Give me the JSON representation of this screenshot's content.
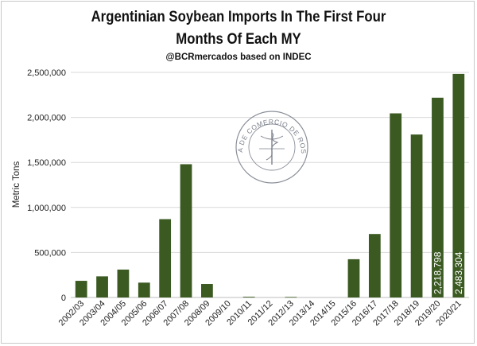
{
  "chart_data": {
    "type": "bar",
    "title": "Argentinian Soybean Imports In The First Four",
    "title_line2": "Months Of Each MY",
    "subtitle": "@BCRmercados based on INDEC",
    "xlabel": "",
    "ylabel": "Metric Tons",
    "ylim": [
      0,
      2500000
    ],
    "yticks": [
      0,
      500000,
      1000000,
      1500000,
      2000000,
      2500000
    ],
    "ytick_labels": [
      "0",
      "500,000",
      "1,000,000",
      "1,500,000",
      "2,000,000",
      "2,500,000"
    ],
    "grid": true,
    "legend": "none",
    "categories": [
      "2002/03",
      "2003/04",
      "2004/05",
      "2005/06",
      "2006/07",
      "2007/08",
      "2008/09",
      "2009/10",
      "2010/11",
      "2011/12",
      "2012/13",
      "2013/14",
      "2014/15",
      "2015/16",
      "2016/17",
      "2017/18",
      "2018/19",
      "2019/20",
      "2020/21"
    ],
    "values": [
      185000,
      235000,
      310000,
      165000,
      870000,
      1480000,
      150000,
      0,
      8000,
      0,
      6000,
      0,
      0,
      425000,
      705000,
      2045000,
      1810000,
      2218798,
      2483304
    ],
    "data_labels": [
      {
        "index": 17,
        "text": "2,218,798"
      },
      {
        "index": 18,
        "text": "2,483,304"
      }
    ],
    "bar_color": "#3b5a22",
    "watermark": {
      "text": "BOLSA DE COMERCIO DE ROSARIO"
    }
  }
}
